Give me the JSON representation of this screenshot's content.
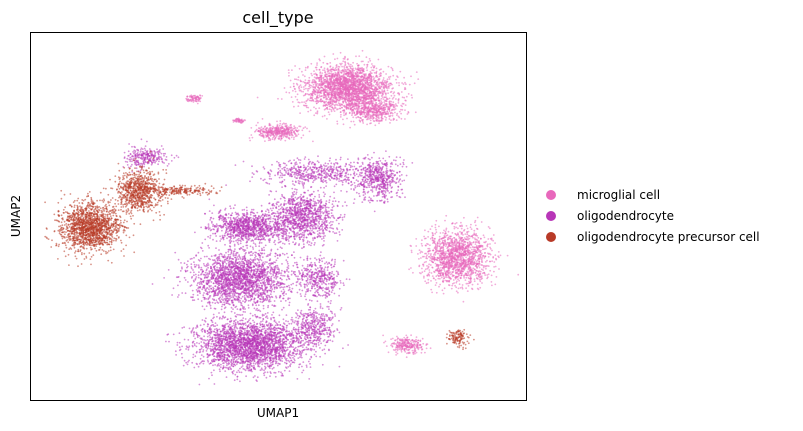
{
  "chart_data": {
    "type": "scatter",
    "title": "cell_type",
    "xlabel": "UMAP1",
    "ylabel": "UMAP2",
    "xlim": [
      0,
      100
    ],
    "ylim": [
      0,
      100
    ],
    "grid": false,
    "ticks": false,
    "legend_placement": "right",
    "series": [
      {
        "name": "microglial cell",
        "color": "#e868bc",
        "clusters": [
          {
            "center": [
              64,
              85
            ],
            "spread": [
              8,
              5.5
            ],
            "weight": 9
          },
          {
            "center": [
              69,
              79
            ],
            "spread": [
              5,
              3
            ],
            "weight": 2
          },
          {
            "center": [
              86,
              39
            ],
            "spread": [
              6,
              6.5
            ],
            "weight": 6
          },
          {
            "center": [
              76,
              15
            ],
            "spread": [
              3,
              2
            ],
            "weight": 1
          },
          {
            "center": [
              50,
              73
            ],
            "spread": [
              4,
              1.8
            ],
            "weight": 1.5
          },
          {
            "center": [
              33,
              82
            ],
            "spread": [
              1.5,
              1
            ],
            "weight": 0.3
          },
          {
            "center": [
              42,
              76
            ],
            "spread": [
              1,
              0.6
            ],
            "weight": 0.2
          }
        ]
      },
      {
        "name": "oligodendrocyte",
        "color": "#b836b8",
        "clusters": [
          {
            "center": [
              44,
              15
            ],
            "spread": [
              10,
              6
            ],
            "weight": 10
          },
          {
            "center": [
              42,
              33
            ],
            "spread": [
              9,
              7
            ],
            "weight": 8
          },
          {
            "center": [
              44,
              47
            ],
            "spread": [
              7,
              4
            ],
            "weight": 4
          },
          {
            "center": [
              55,
              50
            ],
            "spread": [
              6,
              6
            ],
            "weight": 4
          },
          {
            "center": [
              58,
              62
            ],
            "spread": [
              10,
              3
            ],
            "weight": 2
          },
          {
            "center": [
              70,
              60
            ],
            "spread": [
              4,
              5
            ],
            "weight": 2
          },
          {
            "center": [
              58,
              33
            ],
            "spread": [
              4,
              5
            ],
            "weight": 1.5
          },
          {
            "center": [
              57,
              20
            ],
            "spread": [
              4,
              5
            ],
            "weight": 1.5
          },
          {
            "center": [
              23,
              66
            ],
            "spread": [
              4,
              2.5
            ],
            "weight": 1
          }
        ]
      },
      {
        "name": "oligodendrocyte precursor cell",
        "color": "#b83a27",
        "clusters": [
          {
            "center": [
              12,
              47
            ],
            "spread": [
              5.5,
              6
            ],
            "weight": 6
          },
          {
            "center": [
              22,
              57
            ],
            "spread": [
              4,
              5
            ],
            "weight": 3
          },
          {
            "center": [
              30,
              57
            ],
            "spread": [
              6,
              1.2
            ],
            "weight": 0.8
          },
          {
            "center": [
              86,
              17
            ],
            "spread": [
              2,
              2
            ],
            "weight": 0.5
          }
        ]
      }
    ]
  }
}
